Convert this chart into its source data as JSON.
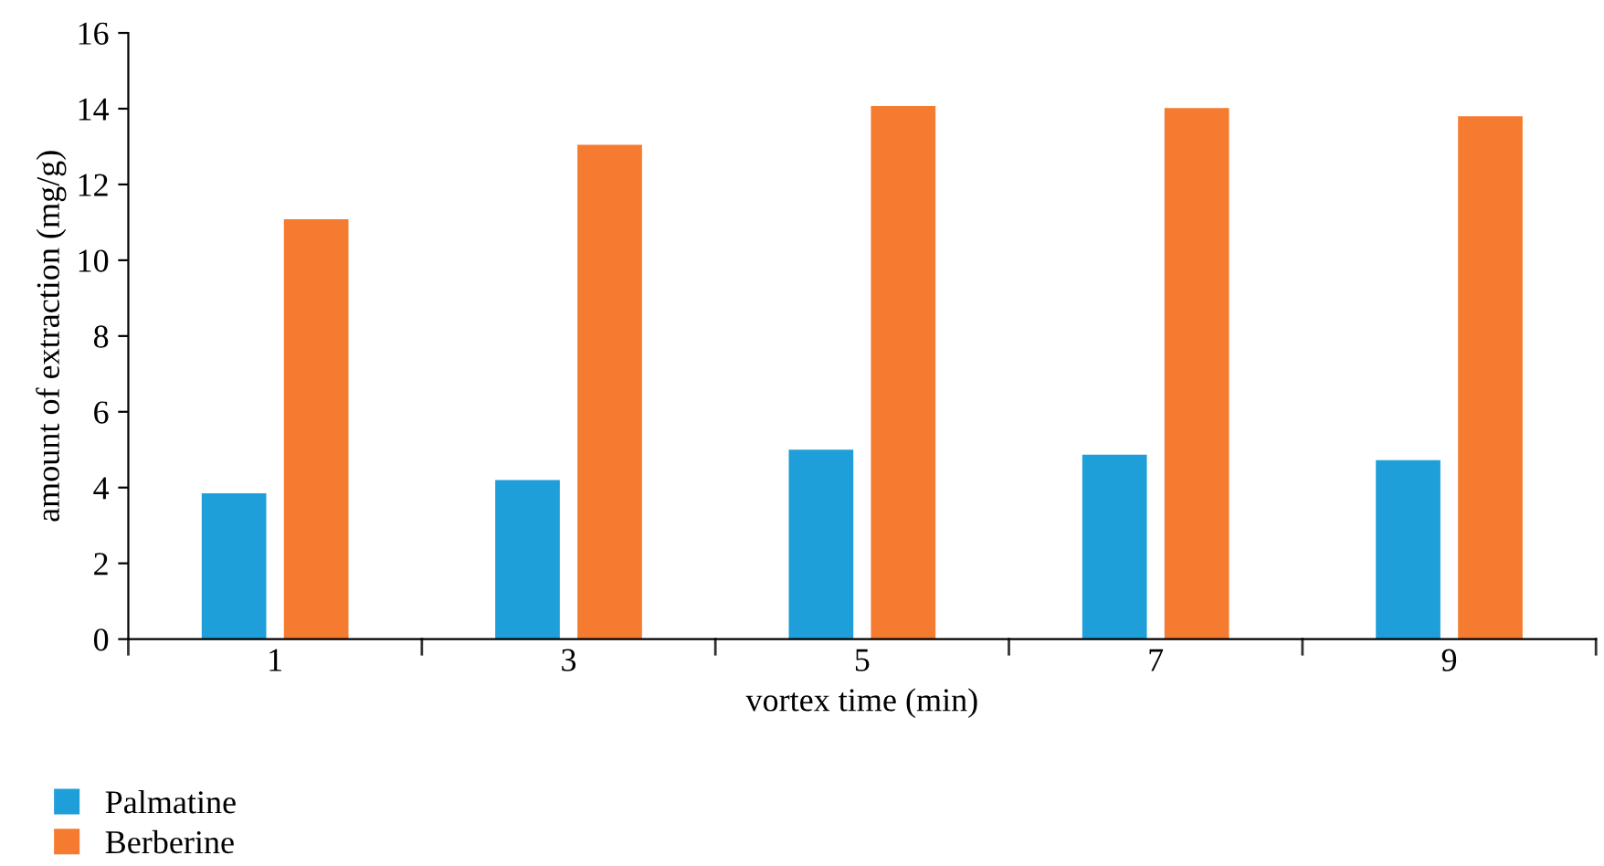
{
  "chart_data": {
    "type": "bar",
    "xlabel": "vortex time (min)",
    "ylabel": "amount of extraction (mg/g)",
    "categories": [
      "1",
      "3",
      "5",
      "7",
      "9"
    ],
    "series": [
      {
        "name": "Palmatine",
        "color": "#1f9fd9",
        "values": [
          3.85,
          4.2,
          5.0,
          4.87,
          4.72
        ]
      },
      {
        "name": "Berberine",
        "color": "#f47b30",
        "values": [
          11.08,
          13.05,
          14.07,
          14.02,
          13.8
        ]
      }
    ],
    "ylim": [
      0,
      16
    ],
    "yticks": [
      0,
      2,
      4,
      6,
      8,
      10,
      12,
      14,
      16
    ],
    "grid": false,
    "legend": "bottom left"
  }
}
